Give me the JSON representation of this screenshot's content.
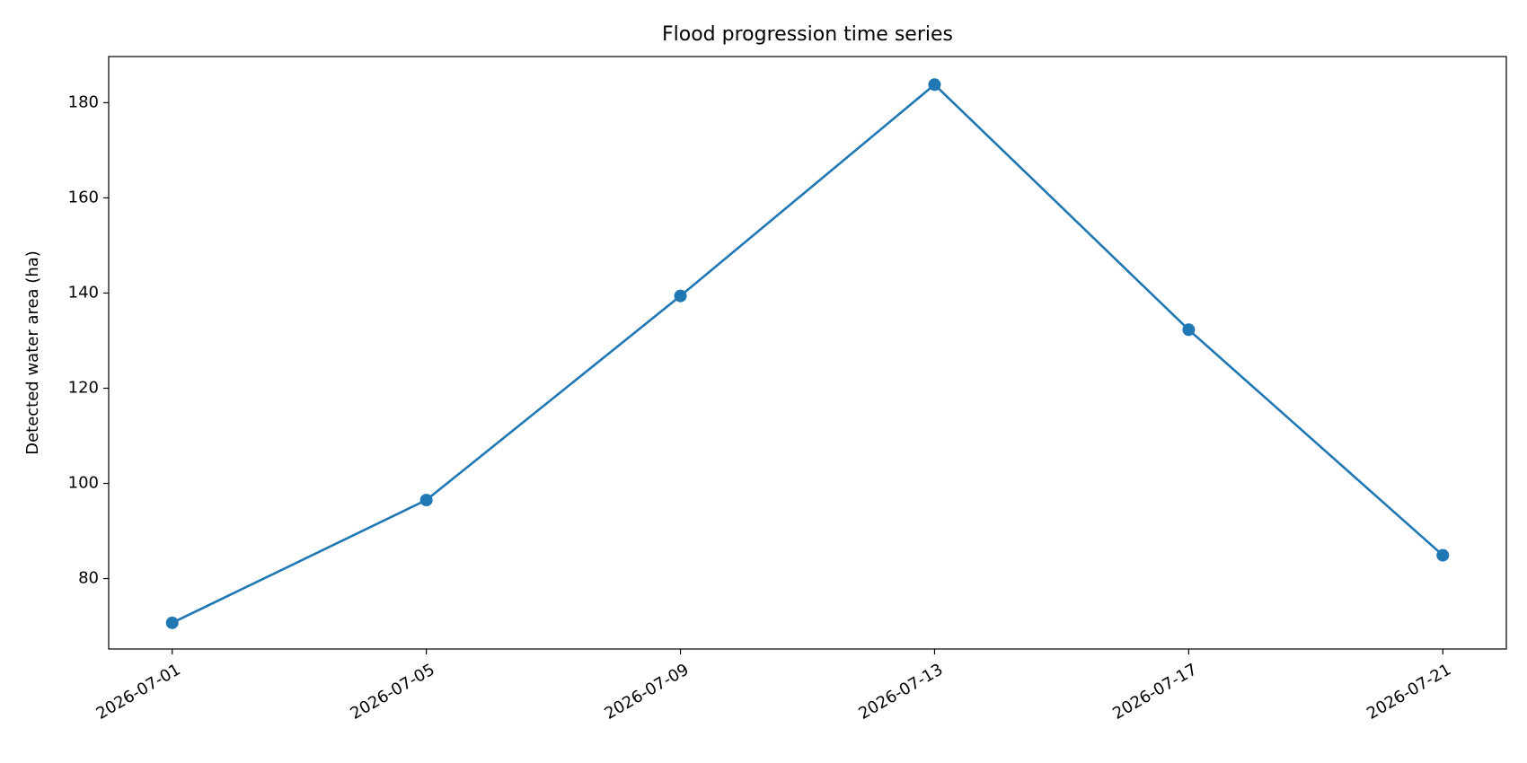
{
  "chart_data": {
    "type": "line",
    "title": "Flood progression time series",
    "y_label": "Detected water area (ha)",
    "x": [
      "2026-07-01",
      "2026-07-05",
      "2026-07-09",
      "2026-07-13",
      "2026-07-17",
      "2026-07-21"
    ],
    "series": [
      {
        "name": "Detected water area",
        "color": "#1f77b4",
        "values": [
          70.7,
          96.5,
          139.4,
          183.8,
          132.3,
          84.9
        ]
      }
    ],
    "xlim": [
      "2026-06-30",
      "2026-07-22"
    ],
    "xticks": [
      "2026-07-01",
      "2026-07-05",
      "2026-07-09",
      "2026-07-13",
      "2026-07-17",
      "2026-07-21"
    ],
    "ylim": [
      65.2,
      189.7
    ],
    "yticks": [
      80,
      100,
      120,
      140,
      160,
      180
    ],
    "grid": false
  }
}
